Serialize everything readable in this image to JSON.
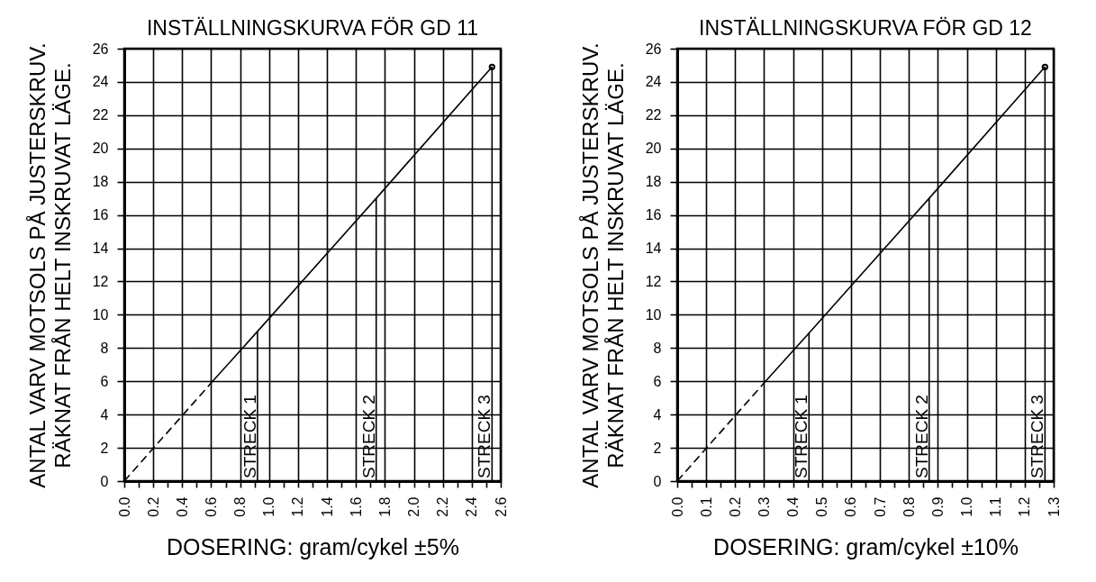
{
  "chart_data": [
    {
      "type": "line",
      "title": "INSTÄLLNINGSKURVA FÖR GD 11",
      "xlabel": "DOSERING: gram/cykel ±5%",
      "ylabel": "ANTAL VARV MOTSOLS PÅ JUSTERSKRUV.\nRÄKNAT FRÅN HELT INSKRUVAT LÄGE.",
      "series": [
        {
          "type": "line",
          "line_style": "dashed",
          "color": "#000000",
          "x": [
            0,
            0.6
          ],
          "values": [
            0,
            5.9
          ]
        },
        {
          "type": "line",
          "line_style": "solid",
          "color": "#000000",
          "x": [
            0.6,
            0.92,
            1.74,
            2.54
          ],
          "values": [
            5.9,
            9.0,
            17.0,
            24.9
          ]
        },
        {
          "type": "scatter",
          "marker": "circle",
          "color": "#000000",
          "x": [
            2.54
          ],
          "values": [
            24.9
          ]
        }
      ],
      "ref_lines": [
        {
          "axis": "x",
          "value": 0.92,
          "label": "STRECK 1"
        },
        {
          "axis": "x",
          "value": 1.74,
          "label": "STRECK 2"
        },
        {
          "axis": "x",
          "value": 2.54,
          "label": "STRECK 3"
        }
      ],
      "xlim": [
        0,
        2.6
      ],
      "xticks": [
        {
          "value": 0,
          "label": "0.0"
        },
        {
          "value": 0.1,
          "label": null
        },
        0.2,
        {
          "value": 0.3,
          "label": null
        },
        0.4,
        {
          "value": 0.5,
          "label": null
        },
        0.6,
        {
          "value": 0.7,
          "label": null
        },
        0.8,
        {
          "value": 0.9,
          "label": null
        },
        {
          "value": 1,
          "label": "1.0"
        },
        {
          "value": 1.1,
          "label": null
        },
        1.2,
        {
          "value": 1.3,
          "label": null
        },
        1.4,
        {
          "value": 1.5,
          "label": null
        },
        1.6,
        {
          "value": 1.7,
          "label": null
        },
        1.8,
        {
          "value": 1.9,
          "label": null
        },
        {
          "value": 2,
          "label": "2.0"
        },
        {
          "value": 2.1,
          "label": null
        },
        2.2,
        {
          "value": 2.3,
          "label": null
        },
        2.4,
        {
          "value": 2.5,
          "label": null
        },
        2.6
      ],
      "ylim": [
        0,
        26
      ],
      "yticks": [
        0,
        2,
        4,
        6,
        8,
        10,
        12,
        14,
        16,
        18,
        20,
        22,
        24,
        26
      ],
      "grid": true
    },
    {
      "type": "line",
      "title": "INSTÄLLNINGSKURVA FÖR GD 12",
      "xlabel": "DOSERING: gram/cykel ±10%",
      "ylabel": "ANTAL VARV MOTSOLS PÅ JUSTERSKRUV.\nRÄKNAT FRÅN HELT INSKRUVAT LÄGE.",
      "series": [
        {
          "type": "line",
          "line_style": "dashed",
          "color": "#000000",
          "x": [
            0,
            0.3
          ],
          "values": [
            0,
            5.9
          ]
        },
        {
          "type": "line",
          "line_style": "solid",
          "color": "#000000",
          "x": [
            0.3,
            0.455,
            0.87,
            1.27
          ],
          "values": [
            5.9,
            8.9,
            17.0,
            24.9
          ]
        },
        {
          "type": "scatter",
          "marker": "circle",
          "color": "#000000",
          "x": [
            1.27
          ],
          "values": [
            24.9
          ]
        }
      ],
      "ref_lines": [
        {
          "axis": "x",
          "value": 0.455,
          "label": "STRECK 1"
        },
        {
          "axis": "x",
          "value": 0.87,
          "label": "STRECK 2"
        },
        {
          "axis": "x",
          "value": 1.27,
          "label": "STRECK 3"
        }
      ],
      "xlim": [
        0,
        1.3
      ],
      "xticks": [
        {
          "value": 0,
          "label": "0.0"
        },
        {
          "value": 0.05,
          "label": null
        },
        0.1,
        {
          "value": 0.15,
          "label": null
        },
        0.2,
        {
          "value": 0.25,
          "label": null
        },
        0.3,
        {
          "value": 0.35,
          "label": null
        },
        0.4,
        {
          "value": 0.45,
          "label": null
        },
        0.5,
        {
          "value": 0.55,
          "label": null
        },
        0.6,
        {
          "value": 0.65,
          "label": null
        },
        0.7,
        {
          "value": 0.75,
          "label": null
        },
        0.8,
        {
          "value": 0.85,
          "label": null
        },
        0.9,
        {
          "value": 0.95,
          "label": null
        },
        {
          "value": 1,
          "label": "1.0"
        },
        {
          "value": 1.05,
          "label": null
        },
        1.1,
        {
          "value": 1.15,
          "label": null
        },
        1.2,
        {
          "value": 1.25,
          "label": null
        },
        1.3
      ],
      "ylim": [
        0,
        26
      ],
      "yticks": [
        0,
        2,
        4,
        6,
        8,
        10,
        12,
        14,
        16,
        18,
        20,
        22,
        24,
        26
      ],
      "grid": true
    }
  ]
}
